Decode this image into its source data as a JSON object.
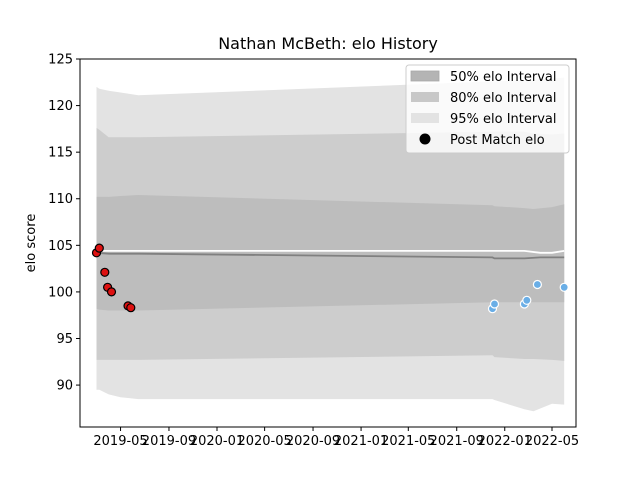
{
  "chart_data": {
    "type": "line",
    "title": "Nathan McBeth: elo History",
    "xlabel": "",
    "ylabel": "elo score",
    "ylim": [
      85.5,
      125
    ],
    "yticks": [
      90,
      95,
      100,
      105,
      110,
      115,
      120,
      125
    ],
    "xlim": [
      "2019-01-18",
      "2022-07-01"
    ],
    "xticks": [
      {
        "date": "2019-05-01",
        "label": "2019-05"
      },
      {
        "date": "2019-09-01",
        "label": "2019-09"
      },
      {
        "date": "2020-01-01",
        "label": "2020-01"
      },
      {
        "date": "2020-05-01",
        "label": "2020-05"
      },
      {
        "date": "2020-09-01",
        "label": "2020-09"
      },
      {
        "date": "2021-01-01",
        "label": "2021-01"
      },
      {
        "date": "2021-05-01",
        "label": "2021-05"
      },
      {
        "date": "2021-09-01",
        "label": "2021-09"
      },
      {
        "date": "2022-01-01",
        "label": "2022-01"
      },
      {
        "date": "2022-05-01",
        "label": "2022-05"
      }
    ],
    "legend": {
      "position": "top-right",
      "entries": [
        "50% elo Interval",
        "80% elo Interval",
        "95% elo Interval",
        "Post Match elo"
      ]
    },
    "colors": {
      "band50": "#b4b4b4",
      "band80": "#c8c8c8",
      "band95": "#e3e3e3",
      "median": "#808080",
      "mean": "#ffffff",
      "red_points": "#dd1111",
      "blue_points": "#6aaee6"
    },
    "bands": {
      "dates": [
        "2019-03-01",
        "2019-03-08",
        "2019-04-01",
        "2019-05-01",
        "2019-06-15",
        "2021-12-01",
        "2021-12-06",
        "2022-02-20",
        "2022-03-15",
        "2022-05-01",
        "2022-06-01"
      ],
      "p95_high": [
        122.0,
        121.8,
        121.6,
        121.4,
        121.1,
        122.6,
        122.6,
        122.7,
        122.8,
        122.9,
        123.0
      ],
      "p80_high": [
        117.6,
        117.4,
        116.6,
        116.6,
        116.6,
        117.2,
        117.2,
        117.2,
        117.0,
        116.9,
        117.0
      ],
      "p50_high": [
        110.2,
        110.2,
        110.2,
        110.3,
        110.4,
        109.3,
        109.2,
        109.0,
        108.9,
        109.1,
        109.4
      ],
      "p50_low": [
        98.2,
        98.1,
        98.0,
        98.0,
        98.0,
        98.9,
        98.9,
        98.9,
        98.9,
        98.9,
        98.9
      ],
      "p80_low": [
        92.7,
        92.7,
        92.7,
        92.7,
        92.7,
        93.2,
        93.0,
        92.8,
        92.8,
        92.7,
        92.6
      ],
      "p95_low": [
        89.5,
        89.5,
        89.0,
        88.7,
        88.5,
        88.5,
        88.4,
        87.4,
        87.2,
        88.0,
        87.9
      ]
    },
    "series": [
      {
        "dates": [
          "2019-03-01",
          "2019-04-01",
          "2019-06-15",
          "2021-12-01",
          "2021-12-06",
          "2022-02-20",
          "2022-04-01",
          "2022-06-01"
        ],
        "values": [
          104.2,
          104.1,
          104.1,
          103.7,
          103.6,
          103.6,
          103.7,
          103.7
        ]
      },
      {
        "dates": [
          "2019-03-01",
          "2019-04-01",
          "2019-06-15",
          "2021-12-01",
          "2021-12-06",
          "2022-02-20",
          "2022-04-01",
          "2022-05-01",
          "2022-06-01"
        ],
        "values": [
          104.4,
          104.4,
          104.4,
          104.4,
          104.4,
          104.4,
          104.2,
          104.2,
          104.4
        ]
      }
    ],
    "points": {
      "red": {
        "dates": [
          "2019-03-01",
          "2019-03-08",
          "2019-03-22",
          "2019-03-29",
          "2019-04-08",
          "2019-05-20",
          "2019-05-27"
        ],
        "values": [
          104.2,
          104.7,
          102.1,
          100.5,
          100.0,
          98.5,
          98.3
        ]
      },
      "blue": {
        "dates": [
          "2021-12-01",
          "2021-12-06",
          "2022-02-20",
          "2022-02-26",
          "2022-03-25",
          "2022-06-01"
        ],
        "values": [
          98.2,
          98.7,
          98.7,
          99.1,
          100.8,
          100.5
        ]
      }
    }
  }
}
